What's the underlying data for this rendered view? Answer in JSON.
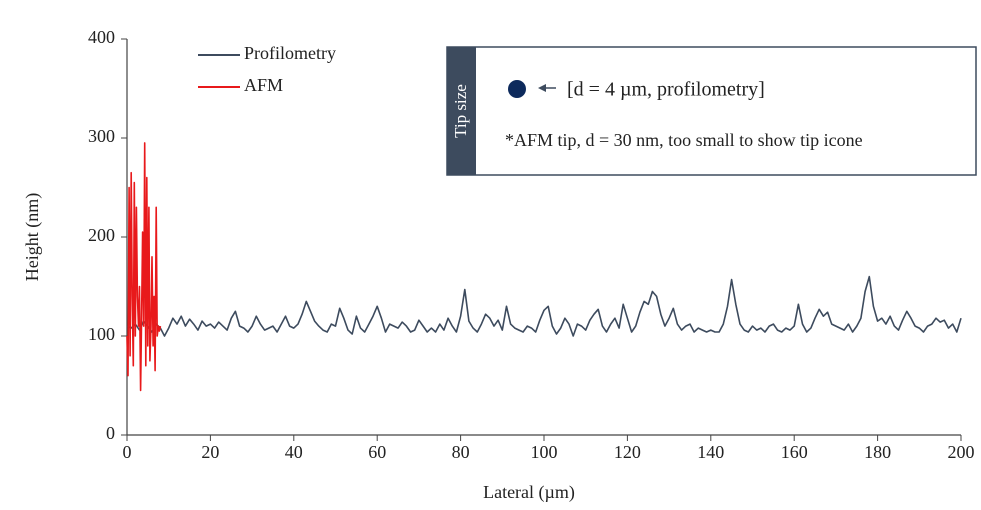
{
  "chart_data": {
    "type": "line",
    "xlabel": "Lateral (µm)",
    "ylabel": "Height (nm)",
    "xlim": [
      0,
      200
    ],
    "xticks": [
      0,
      20,
      40,
      60,
      80,
      100,
      120,
      140,
      160,
      180,
      200
    ],
    "ylim": [
      0,
      400
    ],
    "yticks": [
      0,
      100,
      200,
      300,
      400
    ],
    "grid": false,
    "legend": "upper left",
    "annotation": {
      "label": "Tip size",
      "profilometry_tip": "[d = 4 µm, profilometry]",
      "afm_tip": "*AFM tip, d = 30 nm, too small to show tip icone"
    },
    "series": [
      {
        "name": "Profilometry",
        "color": "#3d4b5e",
        "x": [
          0,
          1,
          2,
          3,
          4,
          5,
          6,
          7,
          8,
          9,
          10,
          11,
          12,
          13,
          14,
          15,
          16,
          17,
          18,
          19,
          20,
          21,
          22,
          23,
          24,
          25,
          26,
          27,
          28,
          29,
          30,
          31,
          32,
          33,
          34,
          35,
          36,
          37,
          38,
          39,
          40,
          41,
          42,
          43,
          44,
          45,
          46,
          47,
          48,
          49,
          50,
          51,
          52,
          53,
          54,
          55,
          56,
          57,
          58,
          59,
          60,
          61,
          62,
          63,
          64,
          65,
          66,
          67,
          68,
          69,
          70,
          71,
          72,
          73,
          74,
          75,
          76,
          77,
          78,
          79,
          80,
          81,
          82,
          83,
          84,
          85,
          86,
          87,
          88,
          89,
          90,
          91,
          92,
          93,
          94,
          95,
          96,
          97,
          98,
          99,
          100,
          101,
          102,
          103,
          104,
          105,
          106,
          107,
          108,
          109,
          110,
          111,
          112,
          113,
          114,
          115,
          116,
          117,
          118,
          119,
          120,
          121,
          122,
          123,
          124,
          125,
          126,
          127,
          128,
          129,
          130,
          131,
          132,
          133,
          134,
          135,
          136,
          137,
          138,
          139,
          140,
          141,
          142,
          143,
          144,
          145,
          146,
          147,
          148,
          149,
          150,
          151,
          152,
          153,
          154,
          155,
          156,
          157,
          158,
          159,
          160,
          161,
          162,
          163,
          164,
          165,
          166,
          167,
          168,
          169,
          170,
          171,
          172,
          173,
          174,
          175,
          176,
          177,
          178,
          179,
          180,
          181,
          182,
          183,
          184,
          185,
          186,
          187,
          188,
          189,
          190,
          191,
          192,
          193,
          194,
          195,
          196,
          197,
          198,
          199,
          200
        ],
        "values": [
          110,
          108,
          112,
          106,
          115,
          110,
          104,
          112,
          108,
          100,
          108,
          118,
          112,
          120,
          110,
          117,
          112,
          106,
          115,
          110,
          112,
          108,
          114,
          110,
          106,
          118,
          125,
          110,
          108,
          104,
          110,
          120,
          112,
          106,
          108,
          110,
          104,
          112,
          120,
          110,
          108,
          112,
          122,
          135,
          125,
          115,
          110,
          106,
          104,
          112,
          110,
          128,
          118,
          106,
          102,
          120,
          108,
          104,
          112,
          120,
          130,
          118,
          104,
          112,
          110,
          108,
          114,
          110,
          104,
          106,
          116,
          110,
          104,
          108,
          104,
          112,
          106,
          118,
          110,
          104,
          120,
          147,
          115,
          108,
          104,
          112,
          122,
          118,
          110,
          116,
          106,
          130,
          112,
          108,
          106,
          104,
          110,
          108,
          104,
          116,
          126,
          130,
          110,
          102,
          108,
          118,
          112,
          100,
          112,
          110,
          106,
          116,
          122,
          127,
          110,
          104,
          112,
          118,
          108,
          132,
          118,
          104,
          110,
          124,
          135,
          132,
          145,
          140,
          122,
          110,
          118,
          128,
          112,
          106,
          110,
          112,
          104,
          108,
          106,
          104,
          106,
          104,
          104,
          112,
          130,
          157,
          132,
          112,
          106,
          104,
          110,
          106,
          108,
          104,
          110,
          112,
          106,
          104,
          108,
          106,
          110,
          132,
          112,
          104,
          108,
          118,
          127,
          120,
          124,
          112,
          110,
          108,
          106,
          112,
          104,
          110,
          118,
          145,
          160,
          130,
          115,
          118,
          112,
          120,
          110,
          106,
          116,
          125,
          118,
          110,
          108,
          104,
          110,
          112,
          118,
          114,
          116,
          108,
          112,
          104,
          118
        ]
      },
      {
        "name": "AFM",
        "color": "#e8191b",
        "x": [
          0,
          0.25,
          0.5,
          0.75,
          1,
          1.25,
          1.5,
          1.75,
          2,
          2.25,
          2.5,
          2.75,
          3,
          3.25,
          3.5,
          3.75,
          4,
          4.25,
          4.5,
          4.75,
          5,
          5.25,
          5.5,
          5.75,
          6,
          6.25,
          6.5,
          6.75,
          7,
          7.25,
          7.5,
          7.75,
          8
        ],
        "values": [
          100,
          60,
          250,
          80,
          265,
          140,
          70,
          255,
          100,
          230,
          140,
          110,
          150,
          45,
          120,
          205,
          110,
          295,
          70,
          260,
          90,
          230,
          75,
          110,
          180,
          90,
          140,
          65,
          230,
          100,
          110,
          105,
          110
        ]
      }
    ]
  }
}
